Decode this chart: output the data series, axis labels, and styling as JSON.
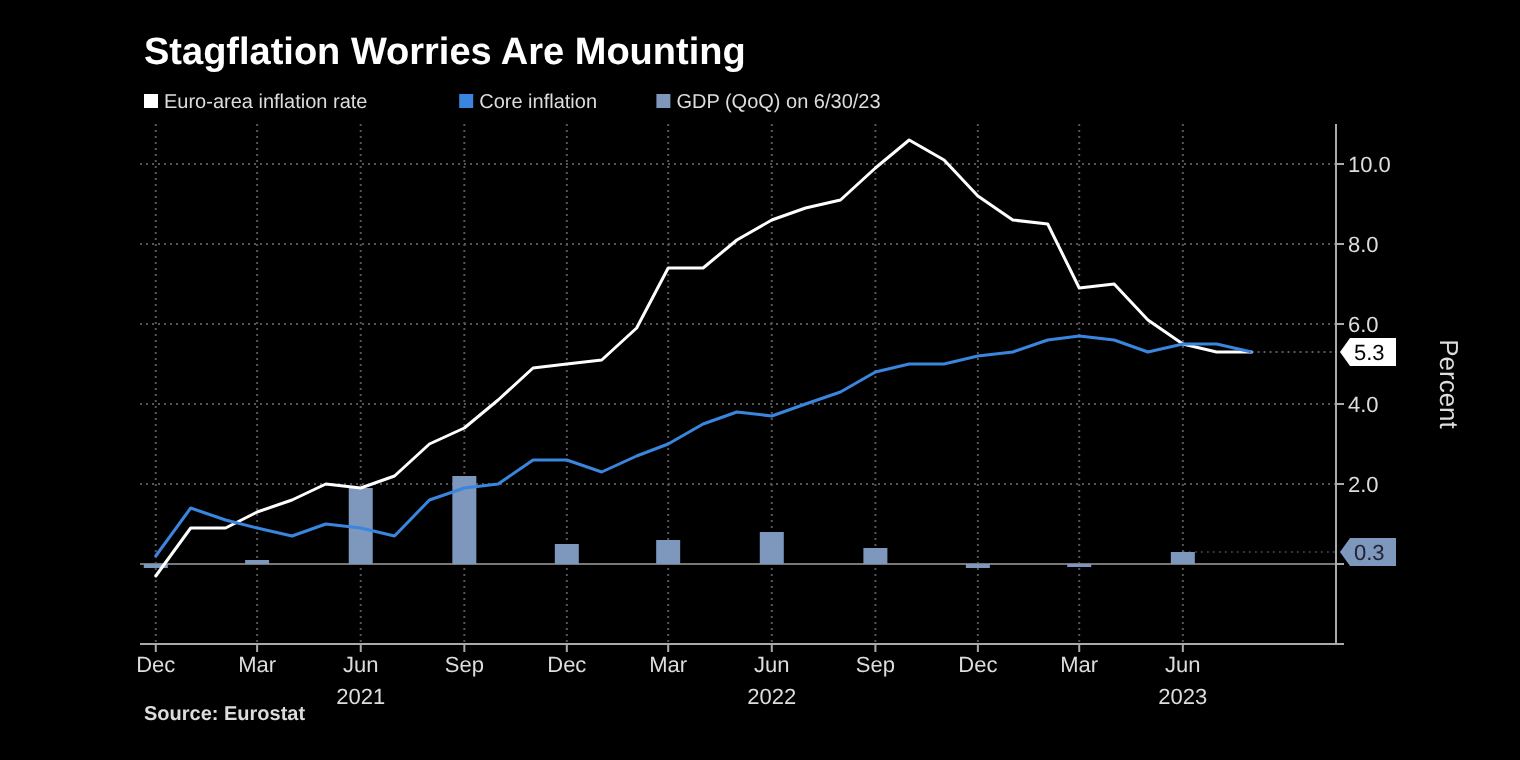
{
  "chart_data": {
    "type": "line",
    "title": "Stagflation Worries Are Mounting",
    "ylabel": "Percent",
    "x": [
      "2020-12",
      "2021-01",
      "2021-02",
      "2021-03",
      "2021-04",
      "2021-05",
      "2021-06",
      "2021-07",
      "2021-08",
      "2021-09",
      "2021-10",
      "2021-11",
      "2021-12",
      "2022-01",
      "2022-02",
      "2022-03",
      "2022-04",
      "2022-05",
      "2022-06",
      "2022-07",
      "2022-08",
      "2022-09",
      "2022-10",
      "2022-11",
      "2022-12",
      "2023-01",
      "2023-02",
      "2023-03",
      "2023-04",
      "2023-05",
      "2023-06",
      "2023-07",
      "2023-08"
    ],
    "series": [
      {
        "name": "GDP (QoQ) on 6/30/23",
        "type": "bar",
        "color": "#7d97bd",
        "x": [
          "2020-12",
          "2021-03",
          "2021-06",
          "2021-09",
          "2021-12",
          "2022-03",
          "2022-06",
          "2022-09",
          "2022-12",
          "2023-03",
          "2023-06"
        ],
        "values": [
          -0.1,
          0.1,
          1.9,
          2.2,
          0.5,
          0.6,
          0.8,
          0.4,
          -0.1,
          0.0,
          0.3
        ],
        "value_labels": [
          null,
          null,
          null,
          null,
          null,
          null,
          null,
          null,
          null,
          null,
          "0.3"
        ]
      },
      {
        "name": "Euro-area inflation rate",
        "color": "#ffffff",
        "values": [
          -0.3,
          0.9,
          0.9,
          1.3,
          1.6,
          2.0,
          1.9,
          2.2,
          3.0,
          3.4,
          4.1,
          4.9,
          5.0,
          5.1,
          5.9,
          7.4,
          7.4,
          8.1,
          8.6,
          8.9,
          9.1,
          9.9,
          10.6,
          10.1,
          9.2,
          8.6,
          8.5,
          6.9,
          7.0,
          6.1,
          5.5,
          5.3,
          5.3
        ],
        "value_labels": [
          null,
          null,
          null,
          null,
          null,
          null,
          null,
          null,
          null,
          null,
          null,
          null,
          null,
          null,
          null,
          null,
          null,
          null,
          null,
          null,
          null,
          null,
          null,
          null,
          null,
          null,
          null,
          null,
          null,
          null,
          null,
          null,
          "5.3"
        ]
      },
      {
        "name": "Core inflation",
        "color": "#3a85de",
        "values": [
          0.2,
          1.4,
          1.1,
          0.9,
          0.7,
          1.0,
          0.9,
          0.7,
          1.6,
          1.9,
          2.0,
          2.6,
          2.6,
          2.3,
          2.7,
          3.0,
          3.5,
          3.8,
          3.7,
          4.0,
          4.3,
          4.8,
          5.0,
          5.0,
          5.2,
          5.3,
          5.6,
          5.7,
          5.6,
          5.3,
          5.5,
          5.5,
          5.3
        ]
      }
    ],
    "xlim": [
      "2020-11-17",
      "2023-10-15"
    ],
    "xticks": [
      {
        "value": "2020-12",
        "label": "Dec"
      },
      {
        "value": "2021-03",
        "label": "Mar"
      },
      {
        "value": "2021-06",
        "label": "Jun\n2021"
      },
      {
        "value": "2021-09",
        "label": "Sep"
      },
      {
        "value": "2021-12",
        "label": "Dec"
      },
      {
        "value": "2022-03",
        "label": "Mar"
      },
      {
        "value": "2022-06",
        "label": "Jun\n2022"
      },
      {
        "value": "2022-09",
        "label": "Sep"
      },
      {
        "value": "2022-12",
        "label": "Dec"
      },
      {
        "value": "2023-03",
        "label": "Mar"
      },
      {
        "value": "2023-06",
        "label": "Jun\n2023"
      }
    ],
    "ylim": [
      -2,
      11
    ],
    "yticks": [
      {
        "value": -2,
        "label": null
      },
      {
        "value": 0,
        "label": null
      },
      {
        "value": 2,
        "label": "2.0"
      },
      {
        "value": 4,
        "label": "4.0"
      },
      {
        "value": 6,
        "label": "6.0"
      },
      {
        "value": 8,
        "label": "8.0"
      },
      {
        "value": 10,
        "label": "10.0"
      }
    ],
    "grid": true,
    "legend": "top left",
    "line_style": "solid",
    "marker": "none",
    "annotations": [
      "Source: Eurostat"
    ]
  }
}
